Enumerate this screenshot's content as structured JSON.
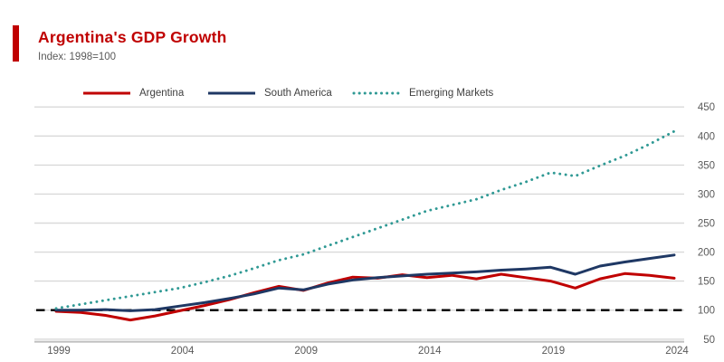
{
  "header": {
    "title": "Argentina's GDP Growth",
    "subtitle": "Index: 1998=100"
  },
  "colors": {
    "accent": "#c00000",
    "title_text": "#c00000",
    "subtitle_text": "#595959",
    "gridline": "#d9d9d9",
    "axis_line": "#bfbfbf",
    "axis_text": "#595959",
    "legend_text": "#404040",
    "baseline": "#000000",
    "argentina": "#c00000",
    "south_america": "#1f3864",
    "emerging_markets": "#2f9994"
  },
  "legend": [
    {
      "label": "Argentina",
      "color": "#c00000",
      "style": "solid"
    },
    {
      "label": "South America",
      "color": "#1f3864",
      "style": "solid"
    },
    {
      "label": "Emerging Markets",
      "color": "#2f9994",
      "style": "dotted"
    }
  ],
  "chart_data": {
    "type": "line",
    "title": "Argentina's GDP Growth",
    "subtitle": "Index: 1998=100",
    "xlabel": "",
    "ylabel": "",
    "grid": "horizontal",
    "legend_position": "top",
    "y_axis_side": "right",
    "xlim": [
      1999,
      2024
    ],
    "ylim": [
      50,
      450
    ],
    "xticks": [
      1999,
      2004,
      2009,
      2014,
      2019,
      2024
    ],
    "yticks": [
      50,
      100,
      150,
      200,
      250,
      300,
      350,
      400,
      450
    ],
    "baseline": {
      "value": 100,
      "style": "dashed",
      "color": "#000000"
    },
    "x": [
      1999,
      2000,
      2001,
      2002,
      2003,
      2004,
      2005,
      2006,
      2007,
      2008,
      2009,
      2010,
      2011,
      2012,
      2013,
      2014,
      2015,
      2016,
      2017,
      2018,
      2019,
      2020,
      2021,
      2022,
      2023,
      2024
    ],
    "series": [
      {
        "id": "argentina",
        "name": "Argentina",
        "color": "#c00000",
        "line_style": "solid",
        "values": [
          98,
          96,
          91,
          83,
          90,
          99,
          108,
          118,
          130,
          141,
          134,
          147,
          157,
          155,
          161,
          156,
          160,
          154,
          162,
          156,
          150,
          138,
          154,
          163,
          160,
          155
        ]
      },
      {
        "id": "south-america",
        "name": "South America",
        "color": "#1f3864",
        "line_style": "solid",
        "values": [
          100,
          100,
          101,
          99,
          101,
          107,
          113,
          120,
          128,
          138,
          135,
          145,
          152,
          156,
          159,
          162,
          164,
          166,
          169,
          171,
          174,
          162,
          176,
          183,
          189,
          195
        ]
      },
      {
        "id": "emerging-markets",
        "name": "Emerging Markets",
        "color": "#2f9994",
        "line_style": "dotted",
        "values": [
          103,
          110,
          117,
          124,
          131,
          138,
          148,
          159,
          172,
          186,
          196,
          211,
          226,
          241,
          256,
          271,
          281,
          291,
          307,
          321,
          337,
          331,
          349,
          366,
          386,
          408
        ]
      }
    ]
  }
}
